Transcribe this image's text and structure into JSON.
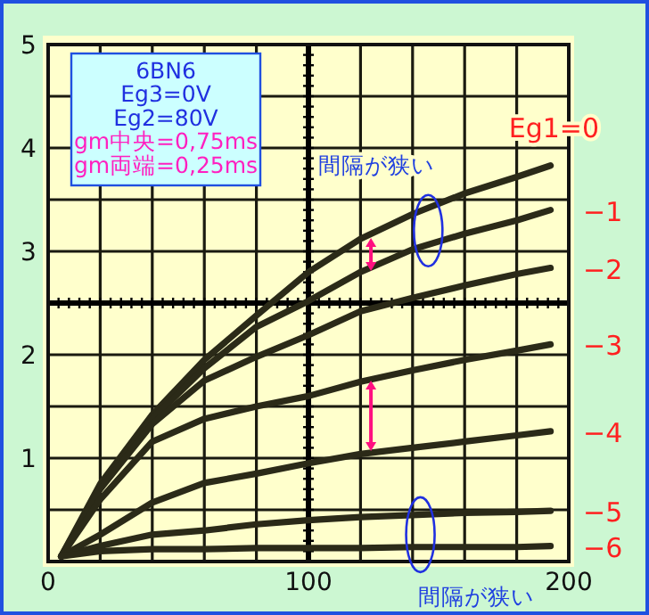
{
  "chart_data": {
    "type": "line",
    "x": [
      5,
      20,
      40,
      60,
      80,
      100,
      120,
      140,
      160,
      180,
      193
    ],
    "series": [
      {
        "name": "Eg1=0",
        "color": "#2b2a18",
        "values": [
          0.05,
          0.75,
          1.42,
          1.95,
          2.38,
          2.8,
          3.12,
          3.36,
          3.56,
          3.72,
          3.83
        ]
      },
      {
        "name": "−1",
        "color": "#2b2a18",
        "values": [
          0.05,
          0.72,
          1.38,
          1.87,
          2.27,
          2.52,
          2.8,
          3.02,
          3.17,
          3.3,
          3.4
        ]
      },
      {
        "name": "−2",
        "color": "#2b2a18",
        "values": [
          0.05,
          0.7,
          1.33,
          1.75,
          1.98,
          2.19,
          2.42,
          2.55,
          2.67,
          2.78,
          2.84
        ]
      },
      {
        "name": "−3",
        "color": "#2b2a18",
        "values": [
          0.05,
          0.6,
          1.16,
          1.38,
          1.5,
          1.6,
          1.74,
          1.85,
          1.95,
          2.04,
          2.1
        ]
      },
      {
        "name": "−4",
        "color": "#2b2a18",
        "values": [
          0.05,
          0.26,
          0.57,
          0.76,
          0.85,
          0.95,
          1.04,
          1.1,
          1.16,
          1.22,
          1.26
        ]
      },
      {
        "name": "−5",
        "color": "#2b2a18",
        "values": [
          0.05,
          0.15,
          0.26,
          0.3,
          0.36,
          0.4,
          0.43,
          0.45,
          0.47,
          0.48,
          0.49
        ]
      },
      {
        "name": "−6",
        "color": "#2b2a18",
        "values": [
          0.05,
          0.1,
          0.12,
          0.12,
          0.13,
          0.13,
          0.13,
          0.14,
          0.14,
          0.14,
          0.15
        ]
      }
    ],
    "xlim": [
      0,
      200
    ],
    "ylim": [
      0,
      5
    ],
    "xticks": [
      0,
      {
        "value": 20,
        "label": null
      },
      {
        "value": 40,
        "label": null
      },
      {
        "value": 60,
        "label": null
      },
      {
        "value": 80,
        "label": null
      },
      100,
      {
        "value": 120,
        "label": null
      },
      {
        "value": 140,
        "label": null
      },
      {
        "value": 160,
        "label": null
      },
      {
        "value": 180,
        "label": null
      },
      200
    ],
    "yticks": [
      {
        "value": 0,
        "label": null
      },
      {
        "value": 0.5,
        "label": null
      },
      1,
      {
        "value": 1.5,
        "label": null
      },
      2,
      3,
      {
        "value": 3.5,
        "label": null
      },
      4,
      {
        "value": 4.5,
        "label": null
      },
      5
    ],
    "grid": true,
    "legend": false,
    "marker": "none",
    "line_style": "solid",
    "ref_lines": [
      {
        "axis": "x",
        "value": 100,
        "color": "#000000"
      },
      {
        "axis": "y",
        "value": 2.5,
        "color": "#000000"
      }
    ],
    "annotations": [
      "6BN6",
      "Eg3=0V",
      "Eg2=80V",
      "gm中央=0,75ms",
      "gm両端=0,25ms",
      "間隔が狭い",
      "間隔が狭い"
    ]
  }
}
